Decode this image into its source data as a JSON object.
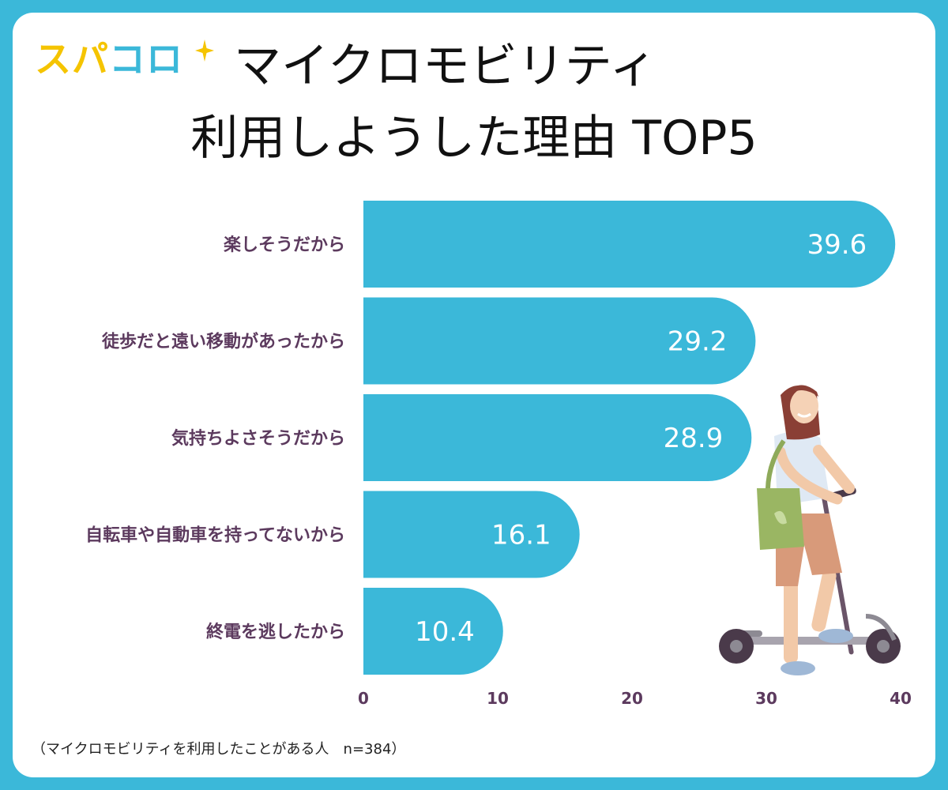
{
  "header": {
    "logo_part1": "スパ",
    "logo_part2": "コロ",
    "title_line1": "マイクロモビリティ",
    "title_line2": "利用しようした理由 TOP5"
  },
  "footnote": "（マイクロモビリティを利用したことがある人　n=384）",
  "colors": {
    "frame": "#3bb8d9",
    "bar": "#3bb8d9",
    "label": "#5c3a5e",
    "logo_yellow": "#f5c400"
  },
  "chart_data": {
    "type": "bar",
    "orientation": "horizontal",
    "categories": [
      "楽しそうだから",
      "徒歩だと遠い移動があったから",
      "気持ちよさそうだから",
      "自転車や自動車を持ってないから",
      "終電を逃したから"
    ],
    "values": [
      39.6,
      29.2,
      28.9,
      16.1,
      10.4
    ],
    "value_labels": [
      "39.6",
      "29.2",
      "28.9",
      "16.1",
      "10.4"
    ],
    "xlim": [
      0,
      40
    ],
    "xticks": [
      "0",
      "10",
      "20",
      "30",
      "40"
    ],
    "grid": false,
    "legend": "none"
  }
}
